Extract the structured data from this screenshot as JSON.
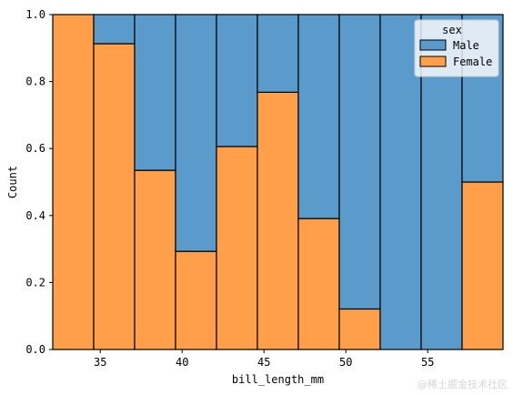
{
  "chart_data": {
    "type": "bar",
    "stacked": "fill",
    "xlabel": "bill_length_mm",
    "ylabel": "Count",
    "xlim": [
      32.1,
      59.6
    ],
    "ylim": [
      0,
      1
    ],
    "xticks": [
      35,
      40,
      45,
      50,
      55
    ],
    "yticks": [
      "0.0",
      "0.2",
      "0.4",
      "0.6",
      "0.8",
      "1.0"
    ],
    "bins": [
      [
        32.1,
        34.6
      ],
      [
        34.6,
        37.1
      ],
      [
        37.1,
        39.6
      ],
      [
        39.6,
        42.1
      ],
      [
        42.1,
        44.6
      ],
      [
        44.6,
        47.1
      ],
      [
        47.1,
        49.6
      ],
      [
        49.6,
        52.1
      ],
      [
        52.1,
        54.6
      ],
      [
        54.6,
        57.1
      ],
      [
        57.1,
        59.6
      ]
    ],
    "series": [
      {
        "name": "Female",
        "color": "#ff9f4a",
        "values": [
          1.0,
          0.913,
          0.535,
          0.293,
          0.606,
          0.768,
          0.391,
          0.121,
          0.0,
          0.0,
          0.5
        ]
      },
      {
        "name": "Male",
        "color": "#5a9bcb",
        "values": [
          0.0,
          0.087,
          0.465,
          0.707,
          0.394,
          0.232,
          0.609,
          0.879,
          1.0,
          1.0,
          0.5
        ]
      }
    ],
    "legend": {
      "title": "sex",
      "placement": "top-right",
      "entries": [
        "Male",
        "Female"
      ]
    },
    "grid": false
  },
  "watermark": "@稀土掘金技术社区"
}
